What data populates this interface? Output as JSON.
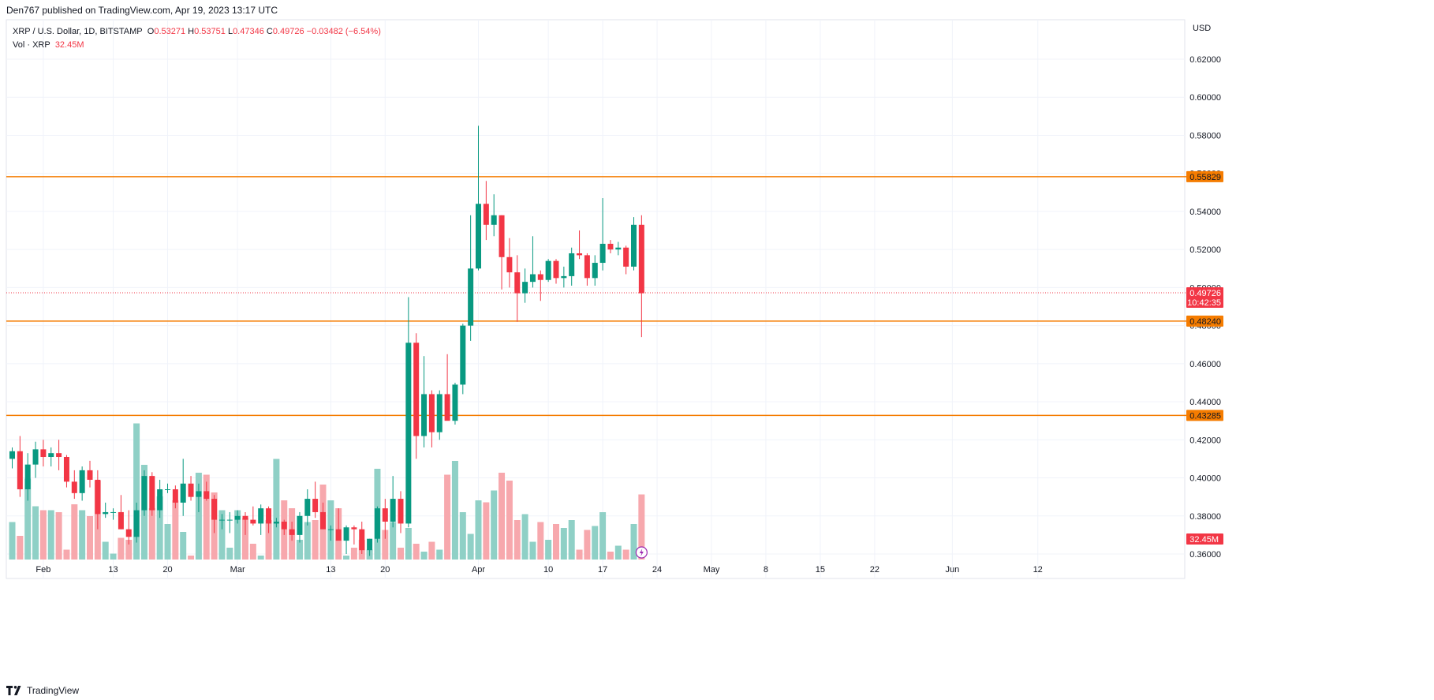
{
  "header": {
    "published": "Den767 published on TradingView.com, Apr 19, 2023 13:17 UTC"
  },
  "legend": {
    "symbol": "XRP / U.S. Dollar, 1D, BITSTAMP",
    "open_label": "O",
    "open": "0.53271",
    "high_label": "H",
    "high": "0.53751",
    "low_label": "L",
    "low": "0.47346",
    "close_label": "C",
    "close": "0.49726",
    "change": "−0.03482 (−6.54%)",
    "vol_label": "Vol · XRP",
    "vol_value": "32.45M"
  },
  "footer": {
    "brand": "TradingView"
  },
  "chart_data": {
    "type": "candlestick",
    "currency": "USD",
    "ylim": [
      0.357,
      0.63
    ],
    "y_ticks": [
      "0.62000",
      "0.60000",
      "0.58000",
      "0.56000",
      "0.54000",
      "0.52000",
      "0.50000",
      "0.48000",
      "0.46000",
      "0.44000",
      "0.42000",
      "0.40000",
      "0.38000",
      "0.36000"
    ],
    "x_ticks": [
      {
        "label": "Feb",
        "day": 4
      },
      {
        "label": "13",
        "day": 13
      },
      {
        "label": "20",
        "day": 20
      },
      {
        "label": "Mar",
        "day": 29
      },
      {
        "label": "13",
        "day": 41
      },
      {
        "label": "20",
        "day": 48
      },
      {
        "label": "Apr",
        "day": 60
      },
      {
        "label": "10",
        "day": 69
      },
      {
        "label": "17",
        "day": 76
      },
      {
        "label": "24",
        "day": 83
      },
      {
        "label": "May",
        "day": 90
      },
      {
        "label": "8",
        "day": 97
      },
      {
        "label": "15",
        "day": 104
      },
      {
        "label": "22",
        "day": 111
      },
      {
        "label": "Jun",
        "day": 121
      },
      {
        "label": "12",
        "day": 132
      }
    ],
    "horizontal_levels": [
      {
        "value": 0.55829,
        "label": "0.55829"
      },
      {
        "value": 0.4824,
        "label": "0.48240"
      },
      {
        "value": 0.43285,
        "label": "0.43285"
      }
    ],
    "last_price": {
      "value": 0.49726,
      "label": "0.49726",
      "countdown": "10:42:35"
    },
    "volume_label": "32.45M",
    "colors": {
      "up": "#089981",
      "down": "#f23645",
      "up_vol": "#8fd0c6",
      "down_vol": "#f7a8ad",
      "level": "#f57c00",
      "grid": "#f0f3fa"
    },
    "candles": [
      {
        "o": 0.41,
        "h": 0.416,
        "l": 0.405,
        "c": 0.414
      },
      {
        "o": 0.414,
        "h": 0.422,
        "l": 0.39,
        "c": 0.394
      },
      {
        "o": 0.394,
        "h": 0.413,
        "l": 0.388,
        "c": 0.407
      },
      {
        "o": 0.407,
        "h": 0.419,
        "l": 0.4,
        "c": 0.415
      },
      {
        "o": 0.415,
        "h": 0.42,
        "l": 0.406,
        "c": 0.411
      },
      {
        "o": 0.411,
        "h": 0.416,
        "l": 0.406,
        "c": 0.413
      },
      {
        "o": 0.413,
        "h": 0.42,
        "l": 0.404,
        "c": 0.411
      },
      {
        "o": 0.411,
        "h": 0.412,
        "l": 0.395,
        "c": 0.398
      },
      {
        "o": 0.398,
        "h": 0.404,
        "l": 0.389,
        "c": 0.392
      },
      {
        "o": 0.392,
        "h": 0.406,
        "l": 0.388,
        "c": 0.404
      },
      {
        "o": 0.404,
        "h": 0.409,
        "l": 0.395,
        "c": 0.399
      },
      {
        "o": 0.399,
        "h": 0.404,
        "l": 0.373,
        "c": 0.381
      },
      {
        "o": 0.381,
        "h": 0.387,
        "l": 0.379,
        "c": 0.382
      },
      {
        "o": 0.382,
        "h": 0.384,
        "l": 0.378,
        "c": 0.382
      },
      {
        "o": 0.382,
        "h": 0.391,
        "l": 0.373,
        "c": 0.373
      },
      {
        "o": 0.373,
        "h": 0.383,
        "l": 0.365,
        "c": 0.369
      },
      {
        "o": 0.369,
        "h": 0.387,
        "l": 0.366,
        "c": 0.383
      },
      {
        "o": 0.383,
        "h": 0.404,
        "l": 0.38,
        "c": 0.401
      },
      {
        "o": 0.401,
        "h": 0.403,
        "l": 0.38,
        "c": 0.383
      },
      {
        "o": 0.383,
        "h": 0.399,
        "l": 0.379,
        "c": 0.394
      },
      {
        "o": 0.394,
        "h": 0.397,
        "l": 0.392,
        "c": 0.394
      },
      {
        "o": 0.394,
        "h": 0.396,
        "l": 0.384,
        "c": 0.387
      },
      {
        "o": 0.387,
        "h": 0.41,
        "l": 0.38,
        "c": 0.397
      },
      {
        "o": 0.397,
        "h": 0.401,
        "l": 0.388,
        "c": 0.39
      },
      {
        "o": 0.39,
        "h": 0.397,
        "l": 0.382,
        "c": 0.393
      },
      {
        "o": 0.393,
        "h": 0.398,
        "l": 0.388,
        "c": 0.389
      },
      {
        "o": 0.389,
        "h": 0.391,
        "l": 0.371,
        "c": 0.378
      },
      {
        "o": 0.378,
        "h": 0.381,
        "l": 0.373,
        "c": 0.378
      },
      {
        "o": 0.378,
        "h": 0.382,
        "l": 0.371,
        "c": 0.378
      },
      {
        "o": 0.378,
        "h": 0.383,
        "l": 0.376,
        "c": 0.38
      },
      {
        "o": 0.38,
        "h": 0.382,
        "l": 0.37,
        "c": 0.378
      },
      {
        "o": 0.378,
        "h": 0.385,
        "l": 0.375,
        "c": 0.376
      },
      {
        "o": 0.376,
        "h": 0.386,
        "l": 0.37,
        "c": 0.384
      },
      {
        "o": 0.384,
        "h": 0.385,
        "l": 0.371,
        "c": 0.376
      },
      {
        "o": 0.376,
        "h": 0.379,
        "l": 0.374,
        "c": 0.377
      },
      {
        "o": 0.377,
        "h": 0.378,
        "l": 0.37,
        "c": 0.373
      },
      {
        "o": 0.373,
        "h": 0.377,
        "l": 0.367,
        "c": 0.37
      },
      {
        "o": 0.37,
        "h": 0.382,
        "l": 0.366,
        "c": 0.38
      },
      {
        "o": 0.38,
        "h": 0.394,
        "l": 0.375,
        "c": 0.389
      },
      {
        "o": 0.389,
        "h": 0.398,
        "l": 0.379,
        "c": 0.382
      },
      {
        "o": 0.382,
        "h": 0.387,
        "l": 0.373,
        "c": 0.373
      },
      {
        "o": 0.373,
        "h": 0.375,
        "l": 0.367,
        "c": 0.373
      },
      {
        "o": 0.373,
        "h": 0.384,
        "l": 0.368,
        "c": 0.367
      },
      {
        "o": 0.367,
        "h": 0.375,
        "l": 0.36,
        "c": 0.374
      },
      {
        "o": 0.374,
        "h": 0.375,
        "l": 0.365,
        "c": 0.373
      },
      {
        "o": 0.373,
        "h": 0.377,
        "l": 0.36,
        "c": 0.362
      },
      {
        "o": 0.362,
        "h": 0.368,
        "l": 0.359,
        "c": 0.368
      },
      {
        "o": 0.368,
        "h": 0.385,
        "l": 0.366,
        "c": 0.384
      },
      {
        "o": 0.384,
        "h": 0.389,
        "l": 0.368,
        "c": 0.377
      },
      {
        "o": 0.377,
        "h": 0.401,
        "l": 0.374,
        "c": 0.389
      },
      {
        "o": 0.389,
        "h": 0.393,
        "l": 0.371,
        "c": 0.376
      },
      {
        "o": 0.376,
        "h": 0.495,
        "l": 0.374,
        "c": 0.471
      },
      {
        "o": 0.471,
        "h": 0.476,
        "l": 0.41,
        "c": 0.422
      },
      {
        "o": 0.422,
        "h": 0.464,
        "l": 0.416,
        "c": 0.444
      },
      {
        "o": 0.444,
        "h": 0.446,
        "l": 0.416,
        "c": 0.424
      },
      {
        "o": 0.424,
        "h": 0.446,
        "l": 0.42,
        "c": 0.444
      },
      {
        "o": 0.444,
        "h": 0.465,
        "l": 0.431,
        "c": 0.43
      },
      {
        "o": 0.43,
        "h": 0.45,
        "l": 0.428,
        "c": 0.449
      },
      {
        "o": 0.449,
        "h": 0.481,
        "l": 0.444,
        "c": 0.48
      },
      {
        "o": 0.48,
        "h": 0.538,
        "l": 0.472,
        "c": 0.51
      },
      {
        "o": 0.51,
        "h": 0.585,
        "l": 0.509,
        "c": 0.544
      },
      {
        "o": 0.544,
        "h": 0.556,
        "l": 0.525,
        "c": 0.533
      },
      {
        "o": 0.533,
        "h": 0.549,
        "l": 0.527,
        "c": 0.538
      },
      {
        "o": 0.538,
        "h": 0.538,
        "l": 0.499,
        "c": 0.516
      },
      {
        "o": 0.516,
        "h": 0.526,
        "l": 0.5,
        "c": 0.508
      },
      {
        "o": 0.508,
        "h": 0.517,
        "l": 0.482,
        "c": 0.497
      },
      {
        "o": 0.497,
        "h": 0.51,
        "l": 0.492,
        "c": 0.503
      },
      {
        "o": 0.503,
        "h": 0.527,
        "l": 0.5,
        "c": 0.507
      },
      {
        "o": 0.507,
        "h": 0.509,
        "l": 0.493,
        "c": 0.504
      },
      {
        "o": 0.504,
        "h": 0.515,
        "l": 0.503,
        "c": 0.514
      },
      {
        "o": 0.514,
        "h": 0.515,
        "l": 0.502,
        "c": 0.505
      },
      {
        "o": 0.505,
        "h": 0.511,
        "l": 0.5,
        "c": 0.506
      },
      {
        "o": 0.506,
        "h": 0.521,
        "l": 0.501,
        "c": 0.518
      },
      {
        "o": 0.518,
        "h": 0.53,
        "l": 0.515,
        "c": 0.517
      },
      {
        "o": 0.517,
        "h": 0.518,
        "l": 0.501,
        "c": 0.505
      },
      {
        "o": 0.505,
        "h": 0.517,
        "l": 0.501,
        "c": 0.513
      },
      {
        "o": 0.513,
        "h": 0.547,
        "l": 0.509,
        "c": 0.523
      },
      {
        "o": 0.523,
        "h": 0.525,
        "l": 0.518,
        "c": 0.52
      },
      {
        "o": 0.52,
        "h": 0.524,
        "l": 0.517,
        "c": 0.521
      },
      {
        "o": 0.521,
        "h": 0.522,
        "l": 0.507,
        "c": 0.511
      },
      {
        "o": 0.511,
        "h": 0.537,
        "l": 0.509,
        "c": 0.533
      },
      {
        "o": 0.533,
        "h": 0.538,
        "l": 0.474,
        "c": 0.497
      }
    ],
    "volumes": [
      19,
      12,
      41,
      27,
      25,
      25,
      24,
      5,
      28,
      25,
      22,
      40,
      9,
      3,
      11,
      10,
      69,
      48,
      26,
      32,
      18,
      30,
      14,
      2,
      44,
      43,
      34,
      25,
      6,
      25,
      21,
      8,
      2,
      20,
      51,
      30,
      26,
      10,
      19,
      20,
      38,
      30,
      26,
      2,
      6,
      10,
      5,
      46,
      15,
      19,
      6,
      16,
      8,
      4,
      9,
      5,
      43,
      50,
      24,
      13,
      30,
      29,
      35,
      44,
      40,
      20,
      23,
      9,
      19,
      10,
      18,
      16,
      20,
      5,
      15,
      17,
      24,
      4,
      7,
      5,
      18,
      33
    ]
  }
}
